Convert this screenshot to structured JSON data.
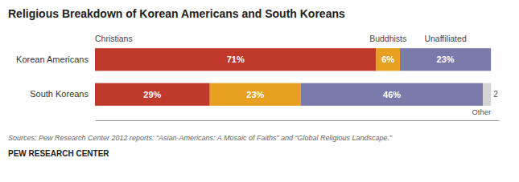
{
  "chart_data": {
    "type": "bar",
    "orientation": "horizontal",
    "stacked": true,
    "title": "Religious Breakdown of Korean Americans and South Koreans",
    "categories": [
      "Korean Americans",
      "South Koreans"
    ],
    "series": [
      {
        "name": "Christians",
        "color": "#c0392b",
        "values": [
          71,
          29
        ],
        "value_labels": [
          "71%",
          "29%"
        ]
      },
      {
        "name": "Buddhists",
        "color": "#e8a020",
        "values": [
          6,
          23
        ],
        "value_labels": [
          "6%",
          "23%"
        ]
      },
      {
        "name": "Unaffiliated",
        "color": "#7b7bab",
        "values": [
          23,
          46
        ],
        "value_labels": [
          "23%",
          "46%"
        ]
      },
      {
        "name": "Other",
        "color": "#d4d4d4",
        "values": [
          0,
          2
        ],
        "value_labels": [
          null,
          "2"
        ]
      }
    ],
    "xlim": [
      0,
      102
    ],
    "tick_labels": false,
    "data_labels": true,
    "annotations": [
      "Sources: Pew Research Center 2012 reports: “Asian-Americans: A Mosaic of Faiths” and “Global Religious Landscape.”",
      "PEW RESEARCH CENTER"
    ]
  }
}
